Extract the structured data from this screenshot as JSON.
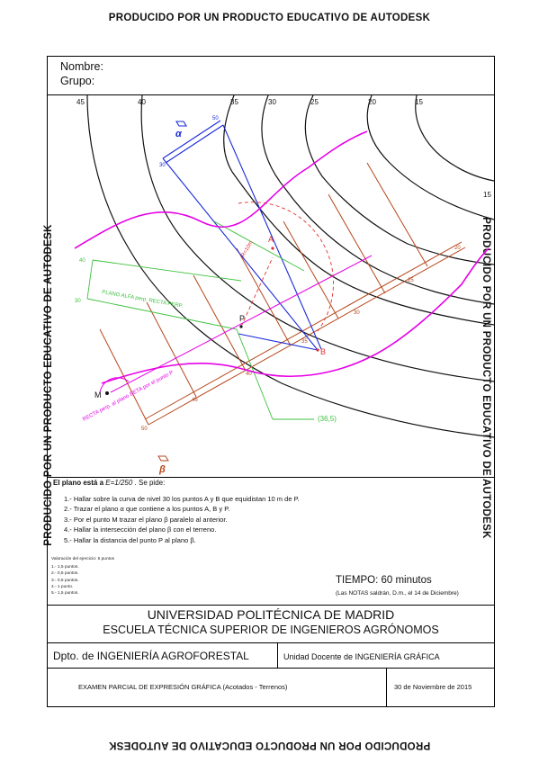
{
  "watermark": "PRODUCIDO POR UN PRODUCTO EDUCATIVO DE AUTODESK",
  "header": {
    "nombre_label": "Nombre:",
    "grupo_label": "Grupo:"
  },
  "drawing": {
    "contour_labels_top": [
      "45",
      "40",
      "35",
      "30",
      "25",
      "20",
      "15"
    ],
    "contour_label_right": "15",
    "points": {
      "A": "A",
      "B": "B",
      "P": "P",
      "M": "M"
    },
    "plane_alpha": "α",
    "plane_beta": "β",
    "alpha_scale_labels": [
      "50",
      "30"
    ],
    "beta_scale_labels": [
      "50",
      "45",
      "40",
      "35",
      "30",
      "25",
      "20"
    ],
    "point_value": "(36,5)",
    "radius_label": "R=10m",
    "green_labels": [
      "40",
      "30"
    ],
    "plane_alpha_perp_label": "PLANO ALFA perp. RECTA PERP.",
    "recta_perp_label": "RECTA perp. al plano BETA por el punto P",
    "colors": {
      "contours": "#111111",
      "terrain": "#e600e6",
      "alpha": "#1a2bd8",
      "beta": "#b5471b",
      "aux": "#3cc13c",
      "circle": "#e23030"
    }
  },
  "statement": {
    "intro_prefix": "El plano está a",
    "scale": "E=1/250",
    "intro_suffix": ". Se pide:",
    "steps": [
      "1.- Hallar sobre la curva de nivel 30 los puntos A y B que equidistan 10 m de P.",
      "2.- Trazar el plano α que contiene a los puntos A, B y P.",
      "3.- Por el punto M trazar el plano β paralelo al anterior.",
      "4.- Hallar la intersección del plano β con el terreno.",
      "5.- Hallar la distancia del punto P al plano β."
    ]
  },
  "scoring": {
    "title": "Valoración del ejercicio: 5 puntos",
    "items": [
      "1.- 1,5 puntos.",
      "2.- 0,5 puntos.",
      "3.- 0,5 puntos.",
      "4.- 1 punto.",
      "5.- 1,5 puntos."
    ]
  },
  "time": {
    "label": "TIEMPO: 60 minutos",
    "notes": "(Las NOTAS saldrán, D.m., el 14 de Diciembre)"
  },
  "title_block": {
    "university": "UNIVERSIDAD POLITÉCNICA DE MADRID",
    "school": "ESCUELA TÉCNICA SUPERIOR DE INGENIEROS AGRÓNOMOS",
    "department": "Dpto. de INGENIERÍA AGROFORESTAL",
    "unit": "Unidad Docente de INGENIERÍA GRÁFICA",
    "exam": "EXAMEN PARCIAL DE EXPRESIÓN GRÁFICA     (Acotados - Terrenos)",
    "date": "30 de Noviembre de 2015"
  }
}
